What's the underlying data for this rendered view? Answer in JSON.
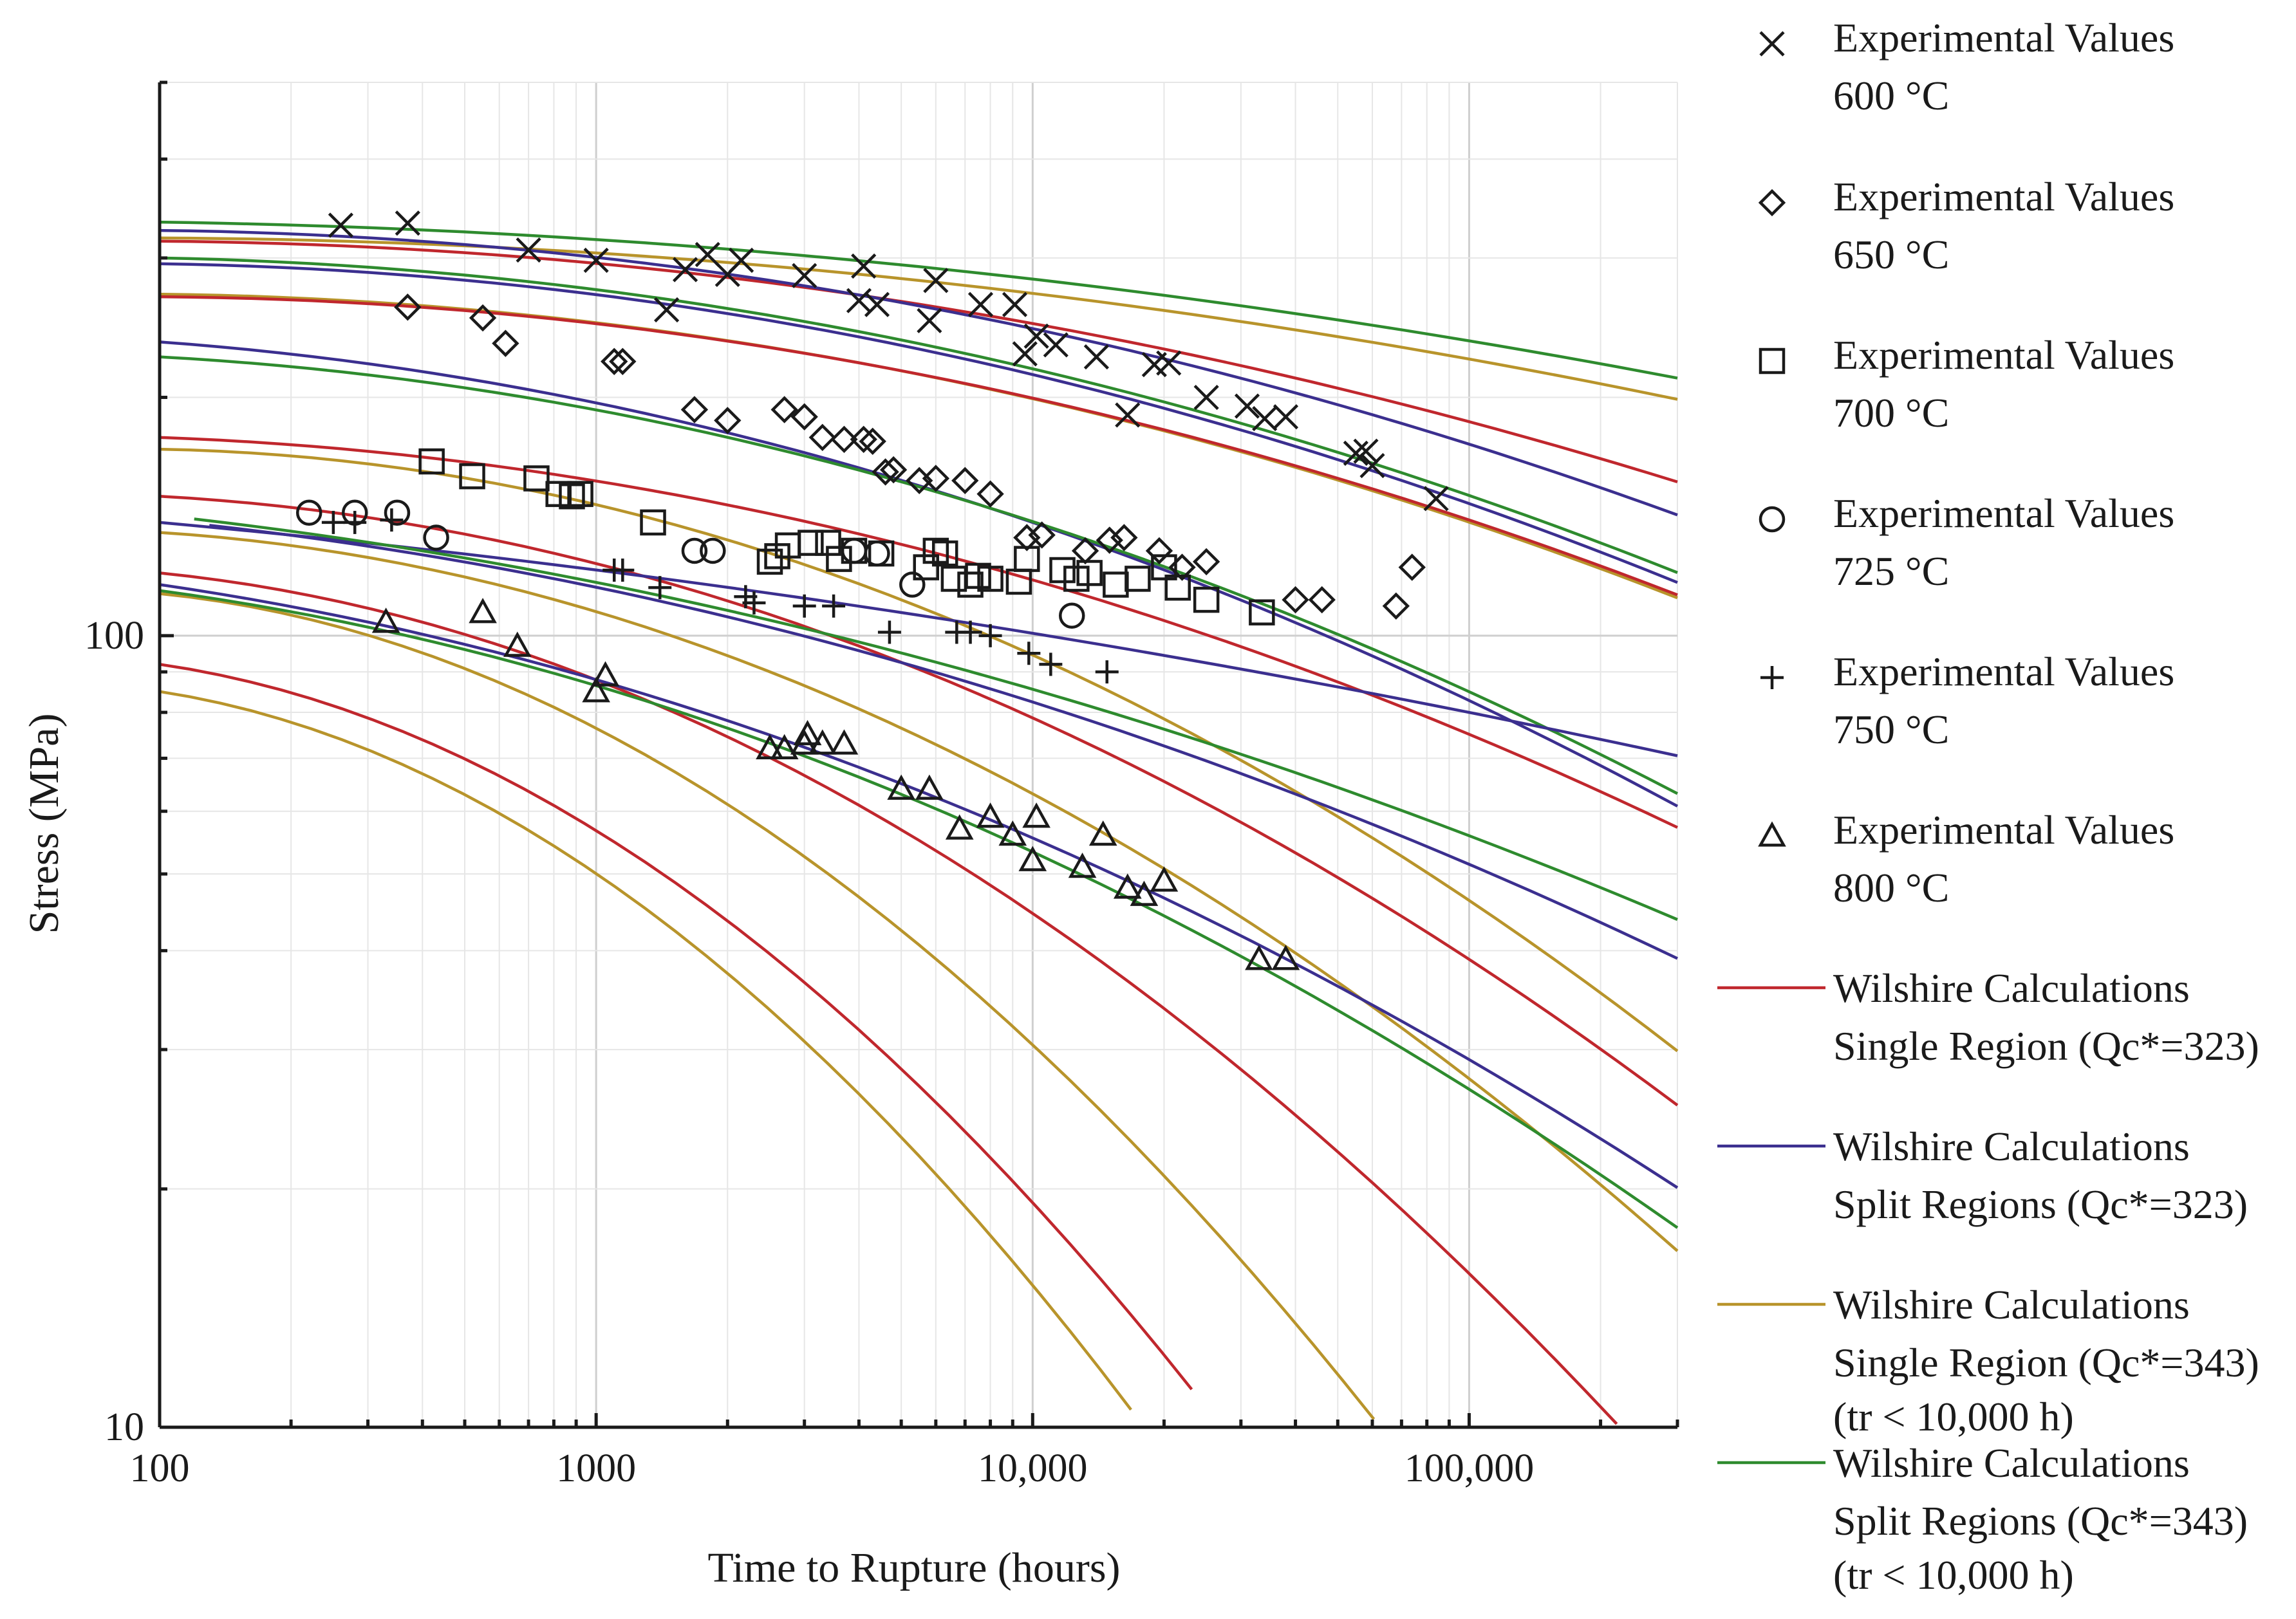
{
  "chart_data": {
    "type": "scatter",
    "title": "",
    "xlabel": "Time to Rupture (hours)",
    "ylabel": "Stress (MPa)",
    "xscale": "log",
    "yscale": "log",
    "xlim": [
      100,
      300000
    ],
    "ylim": [
      10,
      500
    ],
    "x_tick_values": [
      100,
      1000,
      10000,
      100000
    ],
    "x_tick_labels": [
      "100",
      "1000",
      "10,000",
      "100,000"
    ],
    "y_tick_values": [
      10,
      100
    ],
    "y_tick_labels": [
      "10",
      "100"
    ],
    "grid": true,
    "legend_position": "right",
    "colors": {
      "red": "#c0272d",
      "blue": "#3b2f8f",
      "gold": "#b8942b",
      "green": "#2e8b2e"
    },
    "legend": [
      {
        "marker": "x",
        "line1": "Experimental Values",
        "line2": "600 °C"
      },
      {
        "marker": "diamond",
        "line1": "Experimental Values",
        "line2": "650 °C"
      },
      {
        "marker": "square",
        "line1": "Experimental Values",
        "line2": "700 °C"
      },
      {
        "marker": "circle",
        "line1": "Experimental Values",
        "line2": "725 °C"
      },
      {
        "marker": "plus",
        "line1": "Experimental Values",
        "line2": "750 °C"
      },
      {
        "marker": "triangle",
        "line1": "Experimental Values",
        "line2": "800 °C"
      },
      {
        "line": "red",
        "line1": "Wilshire Calculations",
        "line2": "Single Region (Qc*=323)"
      },
      {
        "line": "blue",
        "line1": "Wilshire Calculations",
        "line2": "Split Regions (Qc*=323)"
      },
      {
        "line": "gold",
        "line1": "Wilshire Calculations",
        "line2": "Single Region (Qc*=343)",
        "line3": "(tr < 10,000 h)"
      },
      {
        "line": "green",
        "line1": "Wilshire Calculations",
        "line2": "Split Regions (Qc*=343)",
        "line3": "(tr < 10,000 h)"
      }
    ],
    "series": [
      {
        "name": "Experimental Values 600 °C",
        "marker": "x",
        "points": [
          [
            260,
            330
          ],
          [
            370,
            332
          ],
          [
            700,
            307
          ],
          [
            1000,
            298
          ],
          [
            1450,
            258
          ],
          [
            1600,
            290
          ],
          [
            1800,
            303
          ],
          [
            2000,
            286
          ],
          [
            2150,
            298
          ],
          [
            3000,
            285
          ],
          [
            4000,
            265
          ],
          [
            4100,
            293
          ],
          [
            4400,
            262
          ],
          [
            5800,
            250
          ],
          [
            6000,
            281
          ],
          [
            7600,
            262
          ],
          [
            9100,
            262
          ],
          [
            9600,
            227
          ],
          [
            10200,
            239
          ],
          [
            11300,
            233
          ],
          [
            14000,
            225
          ],
          [
            16500,
            190
          ],
          [
            19000,
            220
          ],
          [
            20500,
            221
          ],
          [
            25000,
            200
          ],
          [
            31000,
            195
          ],
          [
            34000,
            188
          ],
          [
            38000,
            189
          ],
          [
            55000,
            170
          ],
          [
            58000,
            171
          ],
          [
            60000,
            164
          ],
          [
            84000,
            149
          ]
        ]
      },
      {
        "name": "Experimental Values 650 °C",
        "marker": "diamond",
        "points": [
          [
            370,
            260
          ],
          [
            550,
            252
          ],
          [
            620,
            234
          ],
          [
            1100,
            222
          ],
          [
            1150,
            222
          ],
          [
            1680,
            193
          ],
          [
            2000,
            187
          ],
          [
            2700,
            193
          ],
          [
            3000,
            189
          ],
          [
            3300,
            178
          ],
          [
            3700,
            177
          ],
          [
            4100,
            177
          ],
          [
            4300,
            176
          ],
          [
            4600,
            161
          ],
          [
            4800,
            162
          ],
          [
            5500,
            157
          ],
          [
            6000,
            158
          ],
          [
            7000,
            157
          ],
          [
            8000,
            151
          ],
          [
            9700,
            133
          ],
          [
            10500,
            134
          ],
          [
            13200,
            128
          ],
          [
            15000,
            132
          ],
          [
            16200,
            133
          ],
          [
            19500,
            128
          ],
          [
            22000,
            122
          ],
          [
            25000,
            124
          ],
          [
            40000,
            111
          ],
          [
            46000,
            111
          ],
          [
            68000,
            109
          ],
          [
            74000,
            122
          ]
        ]
      },
      {
        "name": "Experimental Values 700 °C",
        "marker": "square",
        "points": [
          [
            420,
            166
          ],
          [
            520,
            159
          ],
          [
            730,
            158
          ],
          [
            820,
            151
          ],
          [
            880,
            150
          ],
          [
            920,
            151
          ],
          [
            1350,
            139
          ],
          [
            2500,
            124
          ],
          [
            2600,
            126
          ],
          [
            2750,
            130
          ],
          [
            3100,
            131
          ],
          [
            3400,
            131
          ],
          [
            3600,
            125
          ],
          [
            3900,
            128
          ],
          [
            4500,
            127
          ],
          [
            5700,
            122
          ],
          [
            6000,
            128
          ],
          [
            6300,
            127
          ],
          [
            6600,
            118
          ],
          [
            7200,
            116
          ],
          [
            7500,
            119
          ],
          [
            8000,
            118
          ],
          [
            9300,
            117
          ],
          [
            9700,
            125
          ],
          [
            11700,
            121
          ],
          [
            12600,
            118
          ],
          [
            13500,
            120
          ],
          [
            15500,
            116
          ],
          [
            17400,
            118
          ],
          [
            20000,
            122
          ],
          [
            21500,
            115
          ],
          [
            25000,
            111
          ],
          [
            33500,
            107
          ]
        ]
      },
      {
        "name": "Experimental Values 725 °C",
        "marker": "circle",
        "points": [
          [
            220,
            143
          ],
          [
            280,
            143
          ],
          [
            350,
            143
          ],
          [
            430,
            133
          ],
          [
            1680,
            128
          ],
          [
            1850,
            128
          ],
          [
            3900,
            128
          ],
          [
            4400,
            127
          ],
          [
            5300,
            116
          ],
          [
            12300,
            106
          ]
        ]
      },
      {
        "name": "Experimental Values 750 °C",
        "marker": "plus",
        "points": [
          [
            250,
            139
          ],
          [
            280,
            139
          ],
          [
            340,
            140
          ],
          [
            1100,
            121
          ],
          [
            1150,
            121
          ],
          [
            1400,
            115
          ],
          [
            2200,
            112
          ],
          [
            2300,
            110
          ],
          [
            3000,
            109
          ],
          [
            3500,
            109
          ],
          [
            4700,
            101
          ],
          [
            6700,
            101
          ],
          [
            7200,
            101
          ],
          [
            8000,
            100
          ],
          [
            9800,
            95
          ],
          [
            11000,
            92
          ],
          [
            14800,
            90
          ]
        ]
      },
      {
        "name": "Experimental Values 800 °C",
        "marker": "triangle",
        "points": [
          [
            330,
            104
          ],
          [
            550,
            107
          ],
          [
            660,
            97
          ],
          [
            1000,
            85
          ],
          [
            1050,
            89
          ],
          [
            2500,
            72
          ],
          [
            2700,
            72
          ],
          [
            3000,
            73
          ],
          [
            3050,
            75
          ],
          [
            3300,
            73
          ],
          [
            3700,
            73
          ],
          [
            5000,
            64
          ],
          [
            5800,
            64
          ],
          [
            6800,
            57
          ],
          [
            8000,
            59
          ],
          [
            9000,
            56
          ],
          [
            10000,
            52
          ],
          [
            10200,
            59
          ],
          [
            13000,
            51
          ],
          [
            14500,
            56
          ],
          [
            16500,
            48
          ],
          [
            18000,
            47
          ],
          [
            20000,
            49
          ],
          [
            33000,
            39
          ],
          [
            38000,
            39
          ]
        ]
      }
    ]
  }
}
